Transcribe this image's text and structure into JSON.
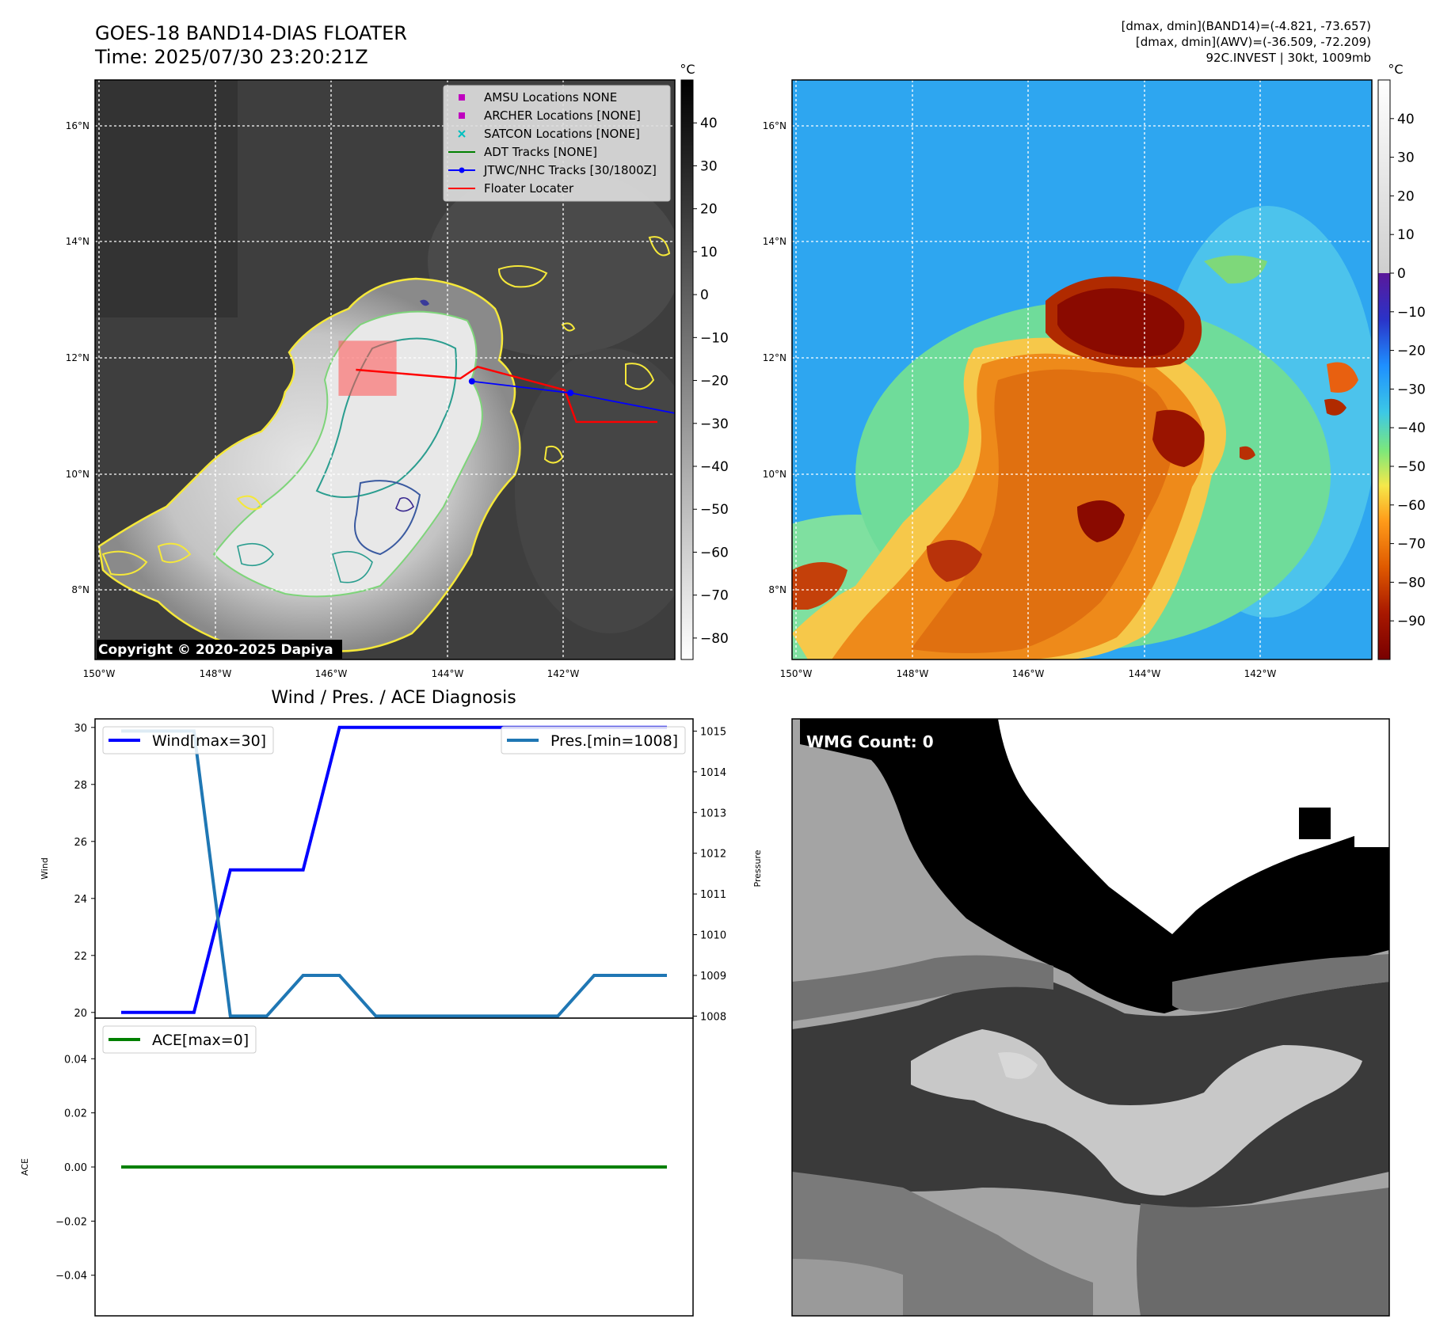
{
  "header": {
    "title_line1": "GOES-18 BAND14-DIAS FLOATER",
    "title_line2": "Time: 2025/07/30 23:20:21Z",
    "info_line1": "[dmax, dmin](BAND14)=(-4.821, -73.657)",
    "info_line2": "[dmax, dmin](AWV)=(-36.509, -72.209)",
    "info_line3": "92C.INVEST | 30kt, 1009mb"
  },
  "copyright": "Copyright © 2020-2025 Dapiya",
  "colors": {
    "wind": "#0000ff",
    "pressure": "#1f77b4",
    "ace": "#008000",
    "floater": "#ff0000",
    "track": "#0000ff",
    "amsu": "#bf00bf",
    "archer": "#bf00bf",
    "satcon": "#00bfbf",
    "adt": "#008000"
  },
  "map": {
    "lon_ticks": [
      "150°W",
      "148°W",
      "146°W",
      "144°W",
      "142°W"
    ],
    "lat_ticks": [
      "16°N",
      "14°N",
      "12°N",
      "10°N",
      "8°N"
    ],
    "lon_range": [
      -150,
      -140
    ],
    "lat_range": [
      6.8,
      16.8
    ],
    "legend": [
      {
        "label": "AMSU Locations NONE",
        "marker": "square",
        "color": "#bf00bf"
      },
      {
        "label": "ARCHER Locations [NONE]",
        "marker": "square",
        "color": "#bf00bf"
      },
      {
        "label": "SATCON Locations [NONE]",
        "marker": "x",
        "color": "#00bfbf"
      },
      {
        "label": "ADT Tracks [NONE]",
        "marker": "line",
        "color": "#008000"
      },
      {
        "label": "JTWC/NHC Tracks [30/1800Z]",
        "marker": "line-dot",
        "color": "#0000ff"
      },
      {
        "label": "Floater Locater",
        "marker": "line",
        "color": "#ff0000"
      }
    ],
    "track_points": [
      [
        -143.5,
        11.6
      ],
      [
        -141.8,
        11.4
      ],
      [
        -140,
        11.05
      ]
    ],
    "floater_path": [
      [
        -145.5,
        11.8
      ],
      [
        -143.7,
        11.65
      ],
      [
        -143.4,
        11.85
      ],
      [
        -141.9,
        11.45
      ],
      [
        -141.7,
        10.9
      ],
      [
        -140.3,
        10.9
      ]
    ],
    "floater_box": [
      [
        -145.8,
        11.35
      ],
      [
        -144.8,
        12.3
      ]
    ]
  },
  "ir_colorbar": {
    "unit": "°C",
    "ticks": [
      "40",
      "30",
      "20",
      "10",
      "0",
      "−10",
      "−20",
      "−30",
      "−40",
      "−50",
      "−60",
      "−70",
      "−80"
    ],
    "values": [
      40,
      30,
      20,
      10,
      0,
      -10,
      -20,
      -30,
      -40,
      -50,
      -60,
      -70,
      -80
    ],
    "range": [
      -85,
      50
    ]
  },
  "awv_colorbar": {
    "unit": "°C",
    "ticks": [
      "40",
      "30",
      "20",
      "10",
      "0",
      "−10",
      "−20",
      "−30",
      "−40",
      "−50",
      "−60",
      "−70",
      "−80",
      "−90"
    ],
    "values": [
      40,
      30,
      20,
      10,
      0,
      -10,
      -20,
      -30,
      -40,
      -50,
      -60,
      -70,
      -80,
      -90
    ],
    "range": [
      -100,
      50
    ]
  },
  "diagnosis": {
    "title": "Wind / Pres. / ACE Diagnosis",
    "wind_ylabel": "Wind",
    "pressure_ylabel": "Pressure",
    "ace_ylabel": "ACE",
    "wind_ticks": [
      "30",
      "28",
      "26",
      "24",
      "22",
      "20"
    ],
    "pressure_ticks": [
      "1015",
      "1014",
      "1013",
      "1012",
      "1011",
      "1010",
      "1009",
      "1008"
    ],
    "ace_ticks": [
      "0.04",
      "0.02",
      "0.00",
      "−0.02",
      "−0.04"
    ],
    "wind_legend": "Wind[max=30]",
    "pressure_legend": "Pres.[min=1008]",
    "ace_legend": "ACE[max=0]"
  },
  "wmg": {
    "label": "WMG Count: 0"
  },
  "chart_data": [
    {
      "type": "line",
      "x": [
        0,
        1,
        2,
        3,
        4,
        5,
        6,
        7,
        8,
        9,
        10,
        11,
        12,
        13,
        14,
        15
      ],
      "series": [
        {
          "name": "Wind[max=30]",
          "axis": "left",
          "values": [
            20,
            20,
            20,
            25,
            25,
            25,
            30,
            30,
            30,
            30,
            30,
            30,
            30,
            30,
            30,
            30
          ]
        },
        {
          "name": "Pres.[min=1008]",
          "axis": "right",
          "values": [
            1015,
            1015,
            1015,
            1008,
            1008,
            1009,
            1009,
            1008,
            1008,
            1008,
            1008,
            1008,
            1008,
            1009,
            1009,
            1009
          ]
        }
      ],
      "ylabel": "Wind",
      "y2label": "Pressure",
      "ylim": [
        19.8,
        30.3
      ],
      "y2lim": [
        1007.95,
        1015.3
      ]
    },
    {
      "type": "line",
      "x": [
        0,
        15
      ],
      "series": [
        {
          "name": "ACE[max=0]",
          "values": [
            0,
            0
          ]
        }
      ],
      "ylabel": "ACE",
      "ylim": [
        -0.055,
        0.055
      ]
    }
  ]
}
